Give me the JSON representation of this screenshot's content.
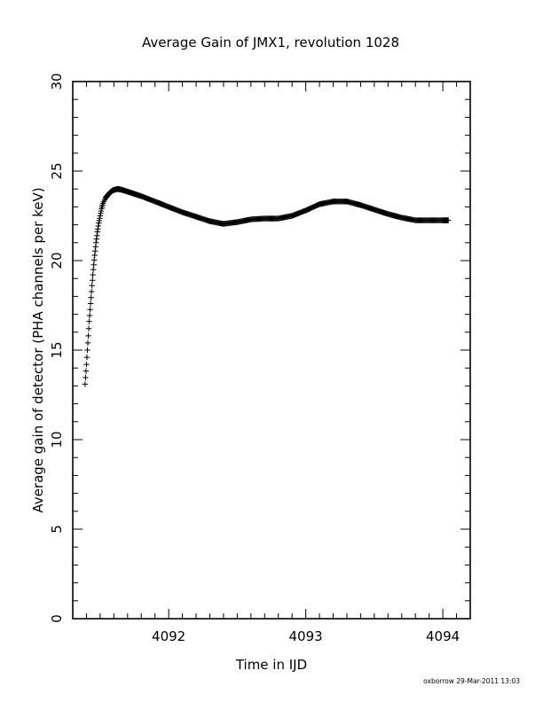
{
  "chart_data": {
    "type": "scatter",
    "title": "Average Gain of JMX1, revolution 1028",
    "xlabel": "Time in IJD",
    "ylabel": "Average gain of detector (PHA channels per keV)",
    "xlim": [
      4091.3,
      4094.2
    ],
    "ylim": [
      0,
      30
    ],
    "x_ticks": [
      4092,
      4093,
      4094
    ],
    "x_tick_labels": [
      "4092",
      "4093",
      "4094"
    ],
    "y_ticks": [
      0,
      5,
      10,
      15,
      20,
      25,
      30
    ],
    "y_tick_labels": [
      "0",
      "5",
      "10",
      "15",
      "20",
      "25",
      "30"
    ],
    "marker": "+",
    "grid": false,
    "series": [
      {
        "color": "#000000",
        "points": [
          [
            4091.39,
            13.1
          ],
          [
            4091.4,
            14.2
          ],
          [
            4091.41,
            15.4
          ],
          [
            4091.42,
            16.6
          ],
          [
            4091.43,
            17.6
          ],
          [
            4091.44,
            18.6
          ],
          [
            4091.45,
            19.5
          ],
          [
            4091.46,
            20.3
          ],
          [
            4091.47,
            21.0
          ],
          [
            4091.48,
            21.6
          ],
          [
            4091.49,
            22.1
          ],
          [
            4091.5,
            22.5
          ],
          [
            4091.51,
            22.9
          ],
          [
            4091.52,
            23.2
          ],
          [
            4091.54,
            23.5
          ],
          [
            4091.56,
            23.7
          ],
          [
            4091.58,
            23.85
          ],
          [
            4091.6,
            23.95
          ],
          [
            4091.63,
            24.0
          ],
          [
            4091.66,
            23.95
          ],
          [
            4091.72,
            23.8
          ],
          [
            4091.8,
            23.6
          ],
          [
            4091.9,
            23.3
          ],
          [
            4092.0,
            23.0
          ],
          [
            4092.1,
            22.7
          ],
          [
            4092.2,
            22.45
          ],
          [
            4092.3,
            22.2
          ],
          [
            4092.4,
            22.05
          ],
          [
            4092.5,
            22.15
          ],
          [
            4092.6,
            22.3
          ],
          [
            4092.7,
            22.35
          ],
          [
            4092.8,
            22.35
          ],
          [
            4092.9,
            22.5
          ],
          [
            4093.0,
            22.8
          ],
          [
            4093.1,
            23.15
          ],
          [
            4093.2,
            23.3
          ],
          [
            4093.3,
            23.3
          ],
          [
            4093.4,
            23.1
          ],
          [
            4093.5,
            22.85
          ],
          [
            4093.6,
            22.6
          ],
          [
            4093.7,
            22.4
          ],
          [
            4093.8,
            22.25
          ],
          [
            4093.9,
            22.25
          ],
          [
            4094.0,
            22.25
          ],
          [
            4094.04,
            22.25
          ]
        ]
      }
    ]
  },
  "footer": "oxborrow 29-Mar-2011 13:03"
}
